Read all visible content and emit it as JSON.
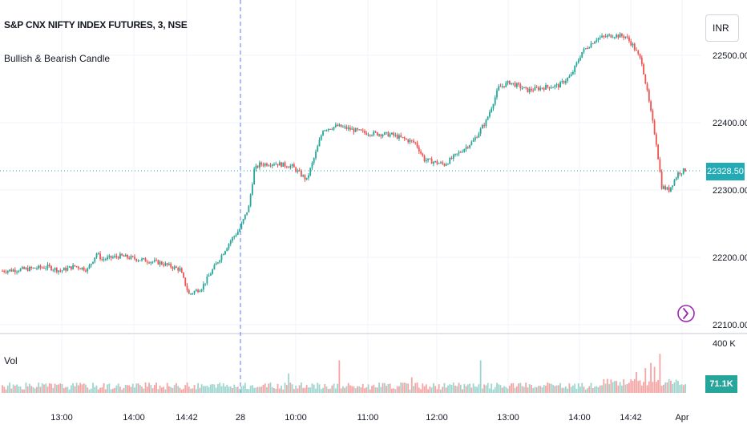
{
  "legend": {
    "title": "S&P CNX NIFTY INDEX FUTURES, 3, NSE",
    "indicator": "Bullish & Bearish Candle",
    "volume_label": "Vol"
  },
  "currency": "INR",
  "last_price_label": "22328.50",
  "last_volume_label": "71.1K",
  "volume_axis_max_label": "400 K",
  "colors": {
    "up": "#26a69a",
    "down": "#ef5350",
    "vol_up": "#9ed6cf",
    "vol_down": "#f5a5a3",
    "price_tag": "#22aab5"
  },
  "chart_data": {
    "type": "candlestick",
    "title": "S&P CNX NIFTY INDEX FUTURES, 3, NSE",
    "indicator": "Bullish & Bearish Candle",
    "ylim": [
      22100,
      22560
    ],
    "y_ticks": [
      "22100.00",
      "22200.00",
      "22300.00",
      "22400.00",
      "22500.00"
    ],
    "x_ticks": [
      "13:00",
      "14:00",
      "14:42",
      "28",
      "10:00",
      "11:00",
      "12:00",
      "13:00",
      "14:00",
      "14:42",
      "Apr"
    ],
    "session_break_label": "28",
    "close_path": [
      [
        0,
        22180
      ],
      [
        15,
        22183
      ],
      [
        25,
        22186
      ],
      [
        32,
        22180
      ],
      [
        40,
        22187
      ],
      [
        47,
        22182
      ],
      [
        52,
        22206
      ],
      [
        55,
        22197
      ],
      [
        65,
        22202
      ],
      [
        80,
        22195
      ],
      [
        87,
        22192
      ],
      [
        98,
        22182
      ],
      [
        103,
        22145
      ],
      [
        110,
        22155
      ],
      [
        118,
        22190
      ],
      [
        126,
        22225
      ],
      [
        131,
        22242
      ],
      [
        136,
        22275
      ],
      [
        139,
        22330
      ],
      [
        142,
        22338
      ],
      [
        150,
        22340
      ],
      [
        160,
        22335
      ],
      [
        168,
        22315
      ],
      [
        173,
        22355
      ],
      [
        177,
        22390
      ],
      [
        185,
        22395
      ],
      [
        200,
        22385
      ],
      [
        215,
        22382
      ],
      [
        228,
        22370
      ],
      [
        233,
        22345
      ],
      [
        244,
        22338
      ],
      [
        252,
        22355
      ],
      [
        260,
        22373
      ],
      [
        267,
        22402
      ],
      [
        274,
        22452
      ],
      [
        280,
        22460
      ],
      [
        290,
        22448
      ],
      [
        300,
        22453
      ],
      [
        307,
        22455
      ],
      [
        314,
        22470
      ],
      [
        320,
        22505
      ],
      [
        328,
        22525
      ],
      [
        337,
        22530
      ],
      [
        344,
        22528
      ],
      [
        348,
        22515
      ],
      [
        353,
        22490
      ],
      [
        358,
        22415
      ],
      [
        361,
        22370
      ],
      [
        364,
        22305
      ],
      [
        368,
        22300
      ],
      [
        373,
        22325
      ],
      [
        377,
        22330
      ]
    ],
    "volume_k": {
      "average": 55,
      "spikes": [
        {
          "session": "28",
          "time": "10:00",
          "volume_k": 150
        },
        {
          "session": "28",
          "time": "11:00",
          "volume_k": 250
        },
        {
          "session": "28",
          "time": "12:00",
          "volume_k": 120
        },
        {
          "session": "28",
          "time": "12:40",
          "volume_k": 250
        },
        {
          "session": "28",
          "time": "14:40",
          "volume_k": 230
        },
        {
          "session": "28",
          "time": "15:10",
          "volume_k": 300
        }
      ],
      "last": 71.1
    }
  }
}
